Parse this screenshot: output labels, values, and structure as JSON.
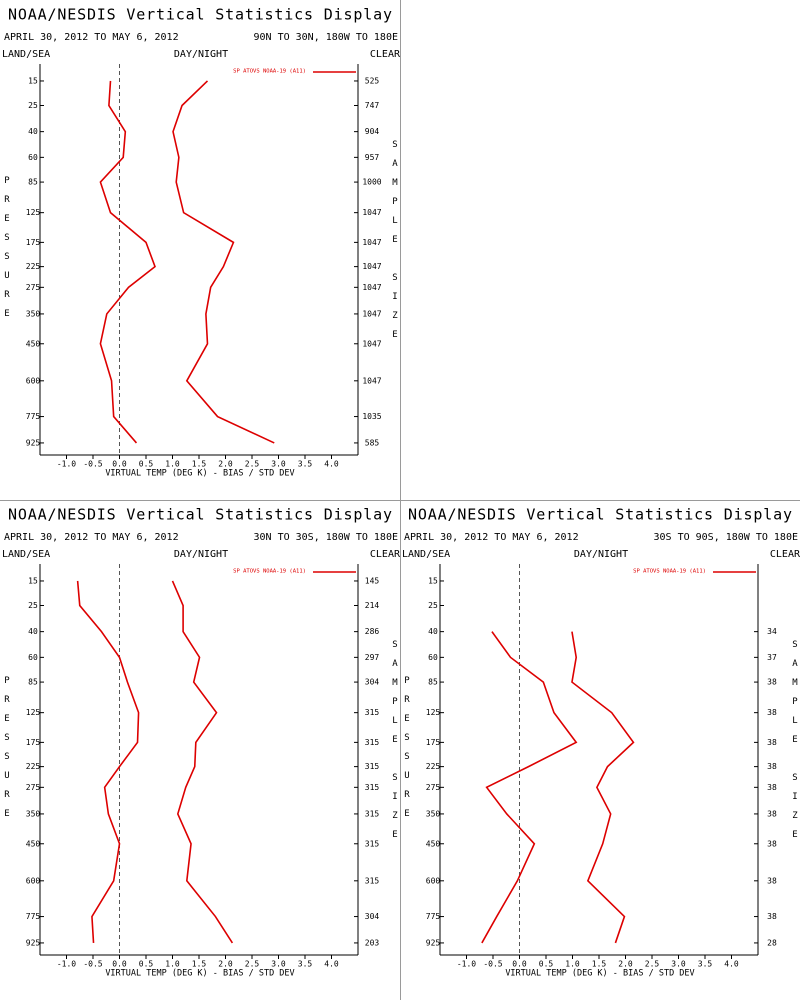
{
  "chart_data": [
    {
      "type": "line",
      "title": "NOAA/NESDIS Vertical Statistics Display",
      "subtitle": "APRIL 30, 2012 TO MAY 6, 2012",
      "region": "90N TO 30N, 180W TO 180E",
      "left_label": "LAND/SEA",
      "center_label": "DAY/NIGHT",
      "right_label": "CLEAR",
      "xlabel": "VIRTUAL TEMP (DEG K) - BIAS / STD DEV",
      "ylabel": "PRESSURE",
      "y2label": "SAMPLE SIZE",
      "xlim": [
        -1.5,
        4.5
      ],
      "xticks": [
        {
          "value": -1,
          "label": "-1.0"
        },
        -0.5,
        {
          "value": 0,
          "label": "0.0"
        },
        0.5,
        {
          "value": 1,
          "label": "1.0"
        },
        1.5,
        {
          "value": 2,
          "label": "2.0"
        },
        2.5,
        {
          "value": 3,
          "label": "3.0"
        },
        3.5,
        {
          "value": 4,
          "label": "4.0"
        }
      ],
      "ylim": [
        10,
        1000
      ],
      "y": [
        15,
        25,
        40,
        60,
        85,
        125,
        175,
        225,
        275,
        350,
        450,
        600,
        775,
        925
      ],
      "sample_size": [
        525,
        747,
        904,
        957,
        1000,
        1047,
        1047,
        1047,
        1047,
        1047,
        1047,
        1047,
        1035,
        585
      ],
      "series": [
        {
          "name": "SP ATOVS NOAA-19 (A11)",
          "color": "#dd0000",
          "bias": [
            -0.17,
            -0.2,
            0.11,
            0.07,
            -0.36,
            -0.17,
            0.5,
            0.67,
            0.17,
            -0.24,
            -0.36,
            -0.15,
            -0.11,
            0.32
          ],
          "std_dev": [
            1.66,
            1.18,
            1.01,
            1.12,
            1.07,
            1.21,
            2.15,
            1.96,
            1.72,
            1.63,
            1.66,
            1.27,
            1.85,
            2.92
          ]
        }
      ]
    },
    {
      "type": "line",
      "title": "NOAA/NESDIS Vertical Statistics Display",
      "subtitle": "APRIL 30, 2012 TO MAY 6, 2012",
      "region": "30N TO 30S, 180W TO 180E",
      "left_label": "LAND/SEA",
      "center_label": "DAY/NIGHT",
      "right_label": "CLEAR",
      "xlabel": "VIRTUAL TEMP (DEG K) - BIAS / STD DEV",
      "ylabel": "PRESSURE",
      "y2label": "SAMPLE SIZE",
      "xlim": [
        -1.5,
        4.5
      ],
      "xticks": [
        {
          "value": -1,
          "label": "-1.0"
        },
        -0.5,
        {
          "value": 0,
          "label": "0.0"
        },
        0.5,
        {
          "value": 1,
          "label": "1.0"
        },
        1.5,
        {
          "value": 2,
          "label": "2.0"
        },
        2.5,
        {
          "value": 3,
          "label": "3.0"
        },
        3.5,
        {
          "value": 4,
          "label": "4.0"
        }
      ],
      "ylim": [
        10,
        1000
      ],
      "y": [
        15,
        25,
        40,
        60,
        85,
        125,
        175,
        225,
        275,
        350,
        450,
        600,
        775,
        925
      ],
      "sample_size": [
        145,
        214,
        286,
        297,
        304,
        315,
        315,
        315,
        315,
        315,
        315,
        315,
        304,
        203
      ],
      "series": [
        {
          "name": "SP ATOVS NOAA-19 (A11)",
          "color": "#dd0000",
          "bias": [
            -0.79,
            -0.75,
            -0.34,
            0.0,
            0.15,
            0.36,
            0.34,
            0.0,
            -0.28,
            -0.21,
            0.0,
            -0.11,
            -0.52,
            -0.49
          ],
          "std_dev": [
            1.0,
            1.2,
            1.2,
            1.51,
            1.4,
            1.83,
            1.44,
            1.42,
            1.25,
            1.1,
            1.35,
            1.27,
            1.81,
            2.13
          ]
        }
      ]
    },
    {
      "type": "line",
      "title": "NOAA/NESDIS Vertical Statistics Display",
      "subtitle": "APRIL 30, 2012 TO MAY 6, 2012",
      "region": "30S TO 90S, 180W TO 180E",
      "left_label": "LAND/SEA",
      "center_label": "DAY/NIGHT",
      "right_label": "CLEAR",
      "xlabel": "VIRTUAL TEMP (DEG K) - BIAS / STD DEV",
      "ylabel": "PRESSURE",
      "y2label": "SAMPLE SIZE",
      "xlim": [
        -1.5,
        4.5
      ],
      "xticks": [
        {
          "value": -1,
          "label": "-1.0"
        },
        -0.5,
        {
          "value": 0,
          "label": "0.0"
        },
        0.5,
        {
          "value": 1,
          "label": "1.0"
        },
        1.5,
        {
          "value": 2,
          "label": "2.0"
        },
        2.5,
        {
          "value": 3,
          "label": "3.0"
        },
        3.5,
        {
          "value": 4,
          "label": "4.0"
        }
      ],
      "ylim": [
        10,
        1000
      ],
      "y": [
        15,
        25,
        40,
        60,
        85,
        125,
        175,
        225,
        275,
        350,
        450,
        600,
        775,
        925
      ],
      "sample_size": [
        null,
        null,
        34,
        37,
        38,
        38,
        38,
        38,
        38,
        38,
        38,
        38,
        38,
        28
      ],
      "series": [
        {
          "name": "SP ATOVS NOAA-19 (A11)",
          "color": "#dd0000",
          "bias": [
            null,
            null,
            -0.52,
            -0.17,
            0.45,
            0.65,
            1.07,
            0.17,
            -0.62,
            -0.24,
            0.28,
            -0.04,
            -0.43,
            -0.71
          ],
          "std_dev": [
            null,
            null,
            0.99,
            1.07,
            0.99,
            1.74,
            2.15,
            1.66,
            1.46,
            1.72,
            1.57,
            1.29,
            1.98,
            1.81
          ]
        }
      ]
    }
  ]
}
